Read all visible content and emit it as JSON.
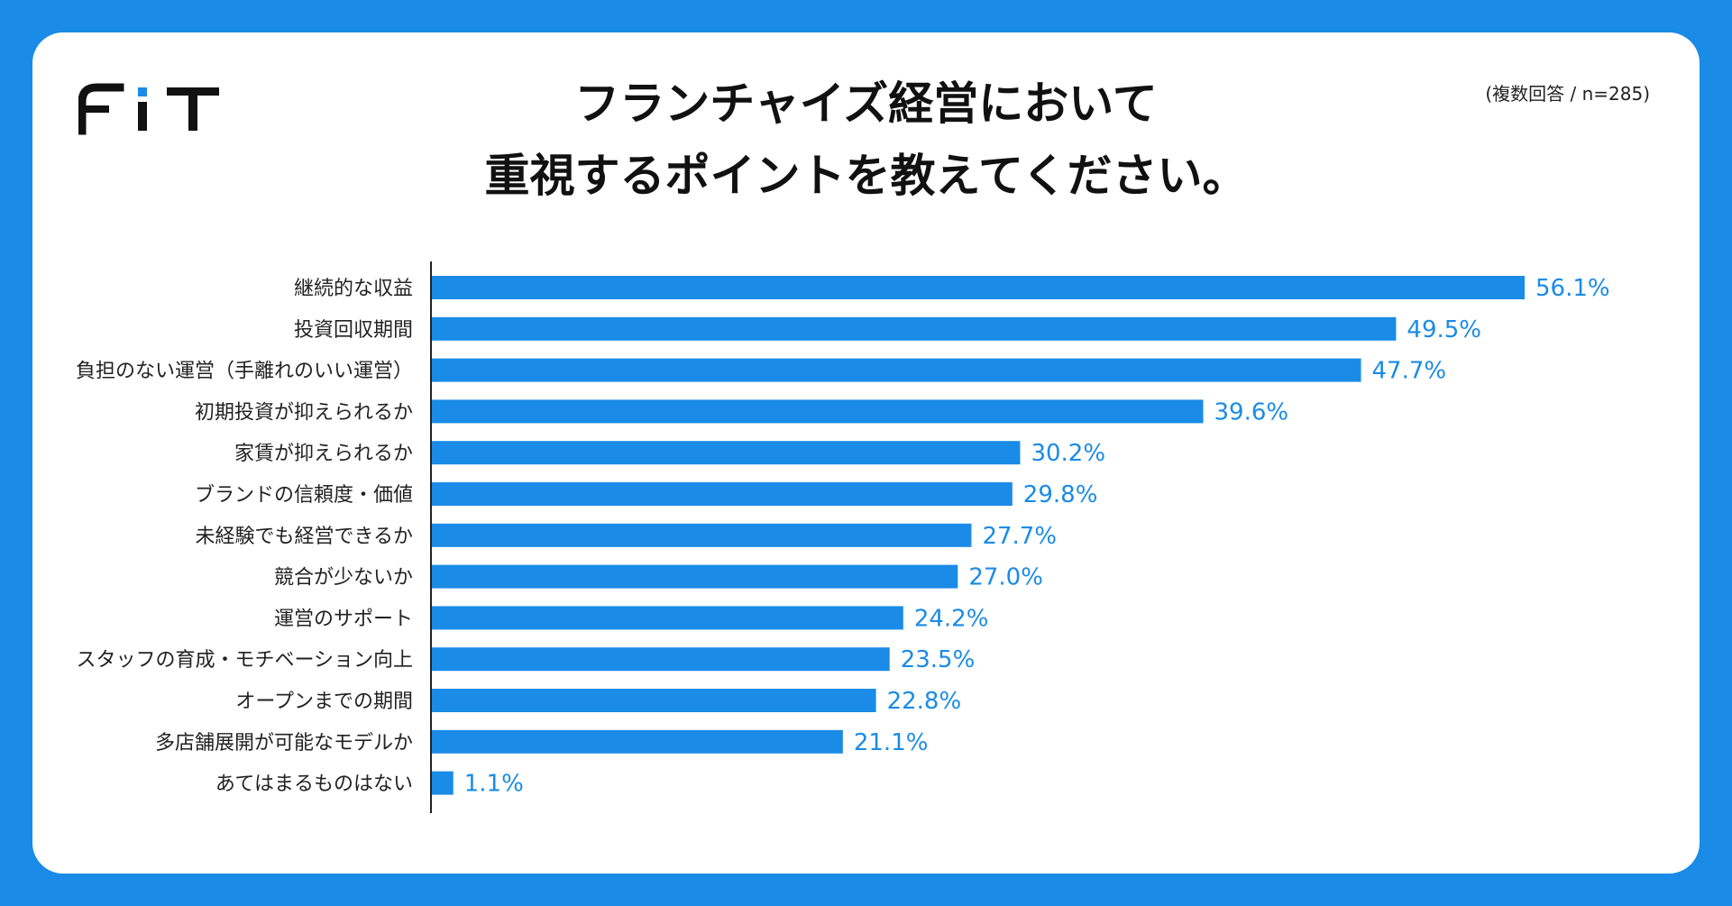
{
  "header": {
    "logo_text": "FIT",
    "title_line1": "フランチャイズ経営において",
    "title_line2": "重視するポイントを教えてください。",
    "note": "(複数回答 / n=285)"
  },
  "colors": {
    "background": "#1a8be6",
    "bar": "#1a8be6",
    "value_label": "#1a8be6",
    "card": "#ffffff"
  },
  "chart_data": {
    "type": "bar",
    "orientation": "horizontal",
    "categories": [
      "継続的な収益",
      "投資回収期間",
      "負担のない運営（手離れのいい運営）",
      "初期投資が抑えられるか",
      "家賃が抑えられるか",
      "ブランドの信頼度・価値",
      "未経験でも経営できるか",
      "競合が少ないか",
      "運営のサポート",
      "スタッフの育成・モチベーション向上",
      "オープンまでの期間",
      "多店舗展開が可能なモデルか",
      "あてはまるものはない"
    ],
    "values": [
      56.1,
      49.5,
      47.7,
      39.6,
      30.2,
      29.8,
      27.7,
      27.0,
      24.2,
      23.5,
      22.8,
      21.1,
      1.1
    ],
    "value_labels": [
      "56.1%",
      "49.5%",
      "47.7%",
      "39.6%",
      "30.2%",
      "29.8%",
      "27.7%",
      "27.0%",
      "24.2%",
      "23.5%",
      "22.8%",
      "21.1%",
      "1.1%"
    ],
    "unit": "%",
    "xlim": [
      0,
      56.1
    ],
    "grid": false,
    "legend": "none"
  }
}
